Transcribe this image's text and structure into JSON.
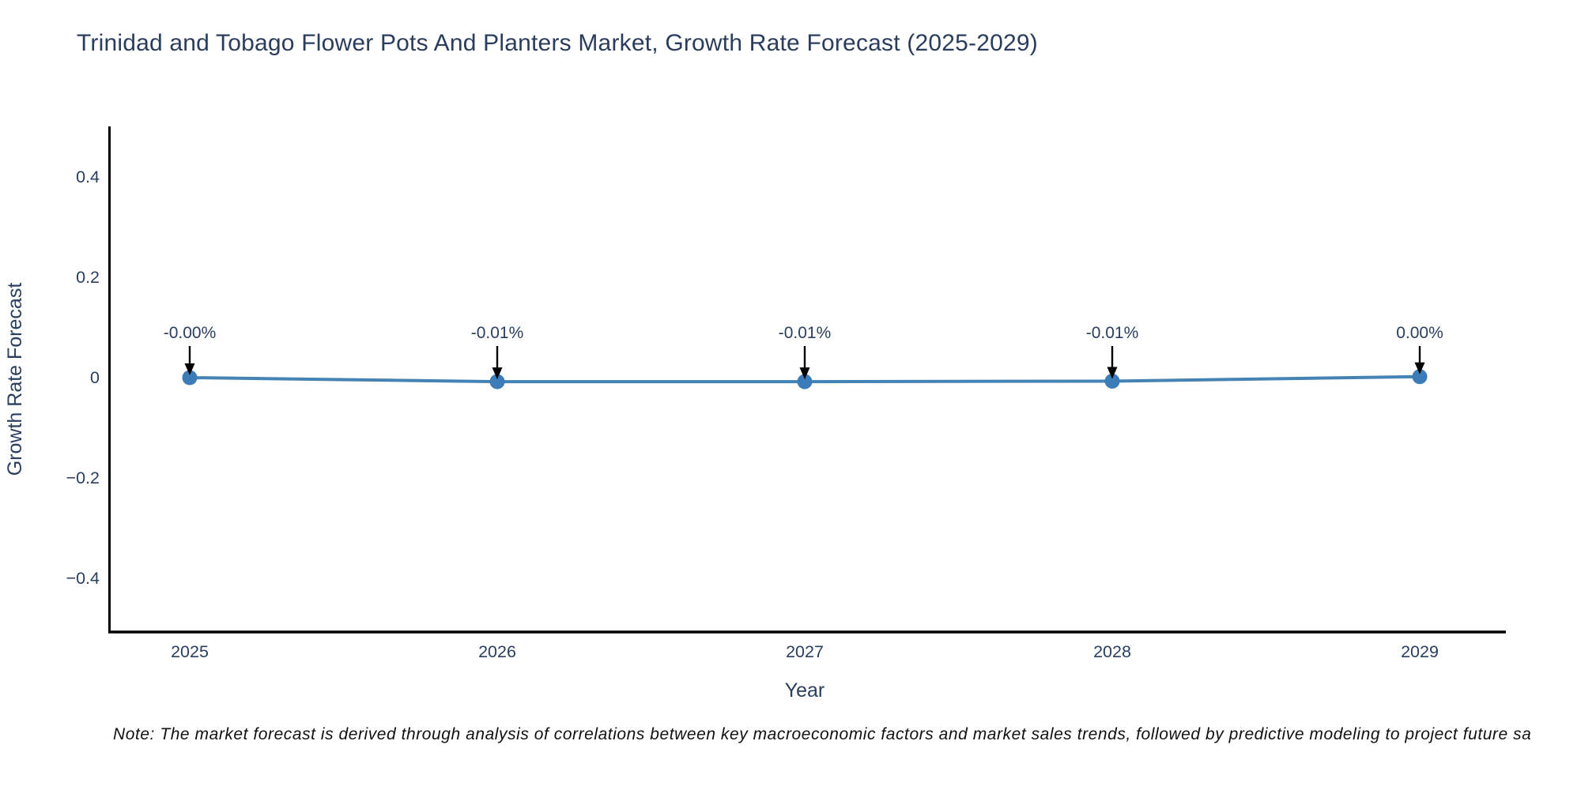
{
  "header": {
    "title": "Trinidad and Tobago Flower Pots And Planters Market, Growth Rate Forecast (2025-2029)"
  },
  "chart_data": {
    "type": "line",
    "title": "Trinidad and Tobago Flower Pots And Planters Market, Growth Rate Forecast (2025-2029)",
    "x": [
      2025,
      2026,
      2027,
      2028,
      2029
    ],
    "xticks": [
      "2025",
      "2026",
      "2027",
      "2028",
      "2029"
    ],
    "series": [
      {
        "name": "Growth Rate Forecast",
        "values": [
          0.0,
          -0.008,
          -0.008,
          -0.007,
          0.002
        ],
        "point_labels": [
          "-0.00%",
          "-0.01%",
          "-0.01%",
          "-0.01%",
          "0.00%"
        ]
      }
    ],
    "xlabel": "Year",
    "ylabel": "Growth Rate Forecast",
    "yticks": {
      "values": [
        0.4,
        0.2,
        0,
        -0.2,
        -0.4
      ],
      "labels": [
        "0.4",
        "0.2",
        "0",
        "−0.2",
        "−0.4"
      ]
    },
    "ylim": [
      -0.5,
      0.5
    ],
    "xlim": [
      2024.73,
      2029.28
    ],
    "grid": false,
    "legend": "none",
    "annotation_style": "value label with down arrow at each point",
    "colors": {
      "line": "#4583b5",
      "marker": "#3c7cb8",
      "axis": "#000000",
      "text": "#2a3f5f",
      "annotation_text": "#2a3f5f",
      "annotation_arrow": "#000000",
      "background": "#ffffff"
    }
  },
  "footer": {
    "note": "Note: The market forecast is derived through analysis of correlations between key macroeconomic factors and market sales trends, followed by predictive modeling to project future sa"
  }
}
